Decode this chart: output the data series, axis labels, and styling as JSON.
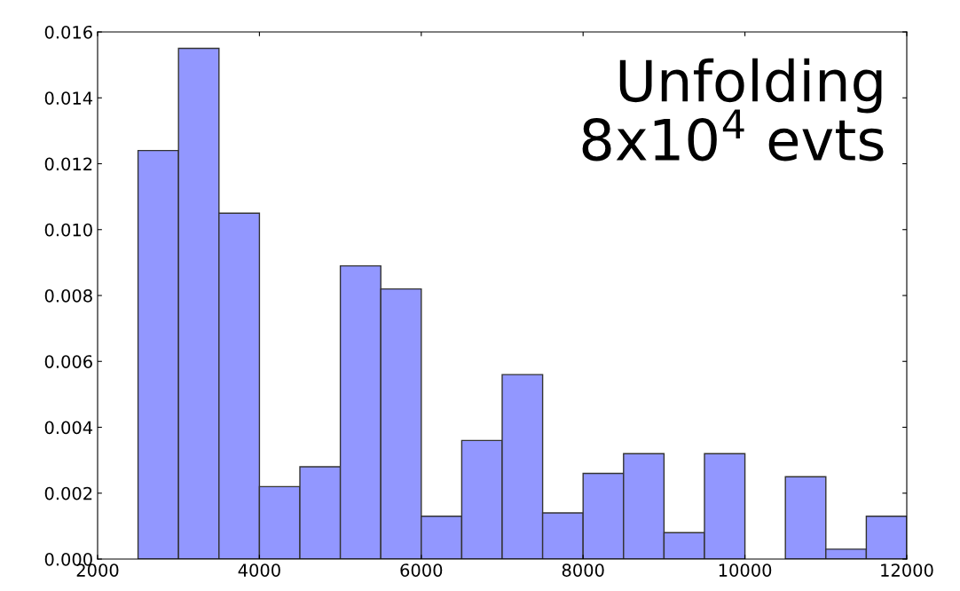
{
  "chart_data": {
    "type": "histogram",
    "bins": [
      2500,
      3000,
      3500,
      4000,
      4500,
      5000,
      5500,
      6000,
      6500,
      7000,
      7500,
      8000,
      8500,
      9000,
      9500,
      10000,
      10500,
      11000,
      11500,
      12000
    ],
    "values": [
      0.0124,
      0.0155,
      0.0105,
      0.0022,
      0.0028,
      0.0089,
      0.0082,
      0.0013,
      0.0036,
      0.0056,
      0.0014,
      0.0026,
      0.0032,
      0.0008,
      0.0032,
      0,
      0.0025,
      0.0003,
      0.0013
    ],
    "color": "#9297ff",
    "xlim": [
      2000,
      12000
    ],
    "xticks": [
      2000,
      4000,
      6000,
      8000,
      10000,
      12000
    ],
    "ylim": [
      0,
      0.016
    ],
    "yticks": [
      {
        "value": 0,
        "label": "0.000"
      },
      {
        "value": 0.002,
        "label": "0.002"
      },
      {
        "value": 0.004,
        "label": "0.004"
      },
      {
        "value": 0.006,
        "label": "0.006"
      },
      {
        "value": 0.008,
        "label": "0.008"
      },
      {
        "value": 0.01,
        "label": "0.010"
      },
      {
        "value": 0.012,
        "label": "0.012"
      },
      {
        "value": 0.014,
        "label": "0.014"
      },
      {
        "value": 0.016,
        "label": "0.016"
      }
    ],
    "grid": false,
    "annotations": [
      "Unfolding\n8x10$^{4}$ evts"
    ]
  }
}
